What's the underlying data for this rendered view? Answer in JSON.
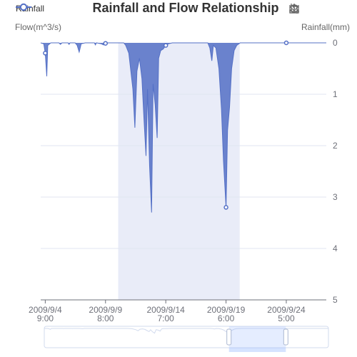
{
  "chart_data": {
    "type": "area",
    "title": "Rainfall and Flow Relationship",
    "legend": {
      "entries": [
        "Rainfall"
      ],
      "placement": "top-left"
    },
    "y_axis_left": {
      "label": "Flow(m^3/s)",
      "ticks": []
    },
    "y_axis_right": {
      "label": "Rainfall(mm)",
      "inverse": true,
      "min": 0,
      "max": 5,
      "ticks": [
        "0",
        "1",
        "2",
        "3",
        "4",
        "5"
      ]
    },
    "x_axis": {
      "type": "time",
      "min": "2009-09-04 00:00",
      "max": "2009-09-27 12:00",
      "ticks": [
        {
          "at": "2009-09-04 09:00",
          "label": [
            "2009/9/4",
            "9:00"
          ]
        },
        {
          "at": "2009-09-09 08:00",
          "label": [
            "2009/9/9",
            "8:00"
          ]
        },
        {
          "at": "2009-09-14 07:00",
          "label": [
            "2009/9/14",
            "7:00"
          ]
        },
        {
          "at": "2009-09-19 06:00",
          "label": [
            "2009/9/19",
            "6:00"
          ]
        },
        {
          "at": "2009-09-24 05:00",
          "label": [
            "2009/9/24",
            "5:00"
          ]
        }
      ]
    },
    "mark_area": {
      "from": "2009-09-10 09:00",
      "to": "2009-09-20 09:00"
    },
    "series": [
      {
        "name": "Rainfall",
        "color": "#5470c6",
        "symbols_at": [
          "2009-09-04 09:00",
          "2009-09-09 08:00",
          "2009-09-14 07:00",
          "2009-09-19 06:00",
          "2009-09-24 05:00"
        ],
        "points": [
          [
            "2009-09-04 00:00",
            0
          ],
          [
            "2009-09-04 06:00",
            0.02
          ],
          [
            "2009-09-04 09:00",
            0.2
          ],
          [
            "2009-09-04 12:00",
            0.65
          ],
          [
            "2009-09-04 14:00",
            0.05
          ],
          [
            "2009-09-04 20:00",
            0
          ],
          [
            "2009-09-05 12:00",
            0
          ],
          [
            "2009-09-05 15:00",
            0.03
          ],
          [
            "2009-09-05 18:00",
            0
          ],
          [
            "2009-09-06 06:00",
            0
          ],
          [
            "2009-09-06 08:00",
            0.03
          ],
          [
            "2009-09-06 10:00",
            0
          ],
          [
            "2009-09-06 20:00",
            0
          ],
          [
            "2009-09-07 00:00",
            0.05
          ],
          [
            "2009-09-07 04:00",
            0.18
          ],
          [
            "2009-09-07 08:00",
            0.02
          ],
          [
            "2009-09-07 16:00",
            0
          ],
          [
            "2009-09-08 10:00",
            0
          ],
          [
            "2009-09-08 12:00",
            0.04
          ],
          [
            "2009-09-08 14:00",
            0
          ],
          [
            "2009-09-09 00:00",
            0.02
          ],
          [
            "2009-09-09 04:00",
            0.04
          ],
          [
            "2009-09-09 08:00",
            0.01
          ],
          [
            "2009-09-09 14:00",
            0
          ],
          [
            "2009-09-10 20:00",
            0
          ],
          [
            "2009-09-11 00:00",
            0.05
          ],
          [
            "2009-09-11 06:00",
            0.2
          ],
          [
            "2009-09-11 14:00",
            0.9
          ],
          [
            "2009-09-11 18:00",
            1.65
          ],
          [
            "2009-09-11 22:00",
            0.55
          ],
          [
            "2009-09-12 03:00",
            0.3
          ],
          [
            "2009-09-12 08:00",
            0.7
          ],
          [
            "2009-09-12 12:00",
            1.5
          ],
          [
            "2009-09-12 16:00",
            2.2
          ],
          [
            "2009-09-12 19:00",
            0.9
          ],
          [
            "2009-09-12 23:00",
            2.4
          ],
          [
            "2009-09-13 03:00",
            3.3
          ],
          [
            "2009-09-13 06:00",
            0.8
          ],
          [
            "2009-09-13 10:00",
            1.2
          ],
          [
            "2009-09-13 14:00",
            1.85
          ],
          [
            "2009-09-13 17:00",
            0.3
          ],
          [
            "2009-09-13 21:00",
            0.15
          ],
          [
            "2009-09-14 02:00",
            0.12
          ],
          [
            "2009-09-14 07:00",
            0.05
          ],
          [
            "2009-09-14 12:00",
            0.02
          ],
          [
            "2009-09-14 20:00",
            0
          ],
          [
            "2009-09-17 18:00",
            0
          ],
          [
            "2009-09-17 22:00",
            0.1
          ],
          [
            "2009-09-18 02:00",
            0.35
          ],
          [
            "2009-09-18 05:00",
            0.05
          ],
          [
            "2009-09-18 10:00",
            0.1
          ],
          [
            "2009-09-18 16:00",
            0.5
          ],
          [
            "2009-09-18 21:00",
            1.3
          ],
          [
            "2009-09-19 01:00",
            2.3
          ],
          [
            "2009-09-19 06:00",
            3.2
          ],
          [
            "2009-09-19 09:00",
            1.7
          ],
          [
            "2009-09-19 13:00",
            1.25
          ],
          [
            "2009-09-19 17:00",
            0.5
          ],
          [
            "2009-09-19 22:00",
            0.15
          ],
          [
            "2009-09-20 03:00",
            0.05
          ],
          [
            "2009-09-20 10:00",
            0
          ],
          [
            "2009-09-27 12:00",
            0
          ]
        ]
      }
    ],
    "data_zoom": {
      "type": "slider",
      "start_percent": 65,
      "end_percent": 85
    },
    "grid": "horizontal"
  },
  "toolbox": [
    "zoom-icon",
    "zoom-reset-icon",
    "restore-icon",
    "save-image-icon"
  ],
  "colors": {
    "series": "#5470c6",
    "area_fill": "rgba(84,112,198,0.85)",
    "mark_area": "rgba(84,112,198,0.13)",
    "grid_line": "#e0e6f1",
    "axis_text": "#6e7079",
    "zoom_fill": "rgba(135,175,274,0.22)"
  }
}
